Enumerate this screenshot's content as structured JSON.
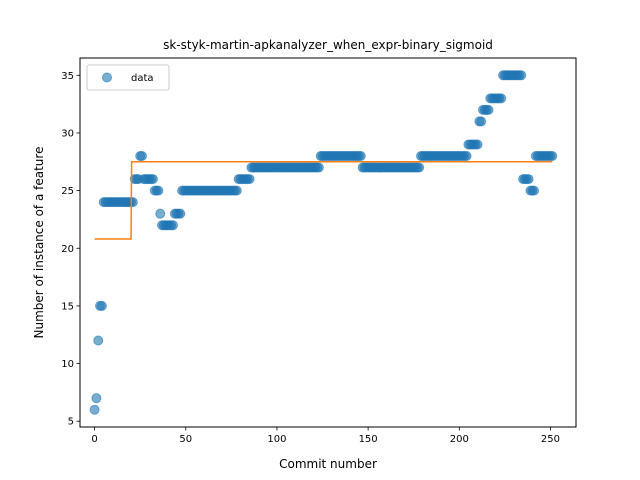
{
  "chart_data": {
    "type": "scatter",
    "title": "sk-styk-martin-apkanalyzer_when_expr-binary_sigmoid",
    "xlabel": "Commit number",
    "ylabel": "Number of instance of a feature",
    "xlim": [
      -8,
      264
    ],
    "ylim": [
      4.5,
      36.5
    ],
    "xticks": [
      0,
      50,
      100,
      150,
      200,
      250
    ],
    "yticks": [
      5,
      10,
      15,
      20,
      25,
      30,
      35
    ],
    "grid": false,
    "legend": {
      "placement": "top-left",
      "entries": [
        "data"
      ]
    },
    "colors": {
      "data": "#1f77b4",
      "fit": "#ff7f0e"
    },
    "series": [
      {
        "name": "data",
        "kind": "scatter",
        "runs": [
          [
            0,
            0,
            6
          ],
          [
            1,
            1,
            7
          ],
          [
            2,
            2,
            12
          ],
          [
            3,
            4,
            15
          ],
          [
            5,
            21,
            24
          ],
          [
            22,
            24,
            26
          ],
          [
            25,
            26,
            28
          ],
          [
            27,
            32,
            26
          ],
          [
            33,
            35,
            25
          ],
          [
            36,
            36,
            23
          ],
          [
            37,
            43,
            22
          ],
          [
            44,
            47,
            23
          ],
          [
            48,
            78,
            25
          ],
          [
            79,
            85,
            26
          ],
          [
            86,
            123,
            27
          ],
          [
            124,
            146,
            28
          ],
          [
            147,
            178,
            27
          ],
          [
            179,
            204,
            28
          ],
          [
            205,
            210,
            29
          ],
          [
            211,
            212,
            31
          ],
          [
            213,
            216,
            32
          ],
          [
            217,
            223,
            33
          ],
          [
            224,
            234,
            35
          ],
          [
            235,
            238,
            26
          ],
          [
            239,
            241,
            25
          ],
          [
            242,
            251,
            28
          ]
        ]
      },
      {
        "kind": "line",
        "points": [
          [
            0,
            20.8
          ],
          [
            20,
            20.8
          ],
          [
            20.3,
            27.5
          ],
          [
            251,
            27.5
          ]
        ]
      }
    ]
  }
}
